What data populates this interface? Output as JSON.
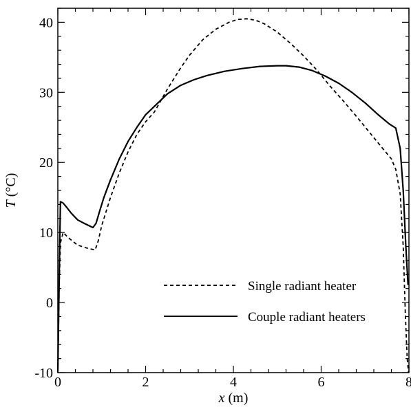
{
  "chart_data": {
    "type": "line",
    "xlabel": {
      "var": "x",
      "unit": " (m)"
    },
    "ylabel": {
      "var": "T",
      "unit": " (°C)"
    },
    "xlim": [
      0,
      8
    ],
    "ylim": [
      -10,
      42
    ],
    "xticks": [
      0,
      2,
      4,
      6,
      8
    ],
    "yticks": [
      -10,
      0,
      10,
      20,
      30,
      40
    ],
    "grid": false,
    "legend_position": "bottom-right",
    "series": [
      {
        "name": "Single radiant heater",
        "style": "dashed",
        "color": "#000000",
        "x": [
          0.0,
          0.03,
          0.06,
          0.12,
          0.25,
          0.45,
          0.65,
          0.85,
          0.92,
          1.0,
          1.2,
          1.4,
          1.6,
          1.8,
          2.0,
          2.2,
          2.5,
          2.8,
          3.0,
          3.3,
          3.6,
          3.9,
          4.1,
          4.3,
          4.5,
          4.7,
          5.0,
          5.3,
          5.6,
          5.9,
          6.2,
          6.5,
          6.8,
          7.1,
          7.4,
          7.6,
          7.7,
          7.8,
          7.87,
          7.92,
          7.96,
          7.99
        ],
        "y": [
          -10.0,
          2.0,
          8.5,
          10.0,
          9.2,
          8.2,
          7.8,
          7.5,
          8.8,
          11.0,
          15.0,
          18.5,
          21.5,
          24.0,
          25.8,
          27.2,
          30.5,
          33.5,
          35.3,
          37.5,
          39.0,
          40.0,
          40.4,
          40.5,
          40.3,
          39.8,
          38.6,
          37.0,
          35.2,
          33.2,
          30.9,
          28.8,
          26.6,
          24.3,
          22.0,
          20.5,
          19.0,
          15.5,
          8.0,
          -2.0,
          -8.0,
          -10.0
        ]
      },
      {
        "name": "Couple radiant heaters",
        "style": "solid",
        "color": "#000000",
        "x": [
          0.0,
          0.03,
          0.06,
          0.12,
          0.2,
          0.3,
          0.45,
          0.6,
          0.8,
          0.87,
          0.95,
          1.05,
          1.2,
          1.4,
          1.6,
          1.8,
          2.0,
          2.2,
          2.5,
          2.8,
          3.1,
          3.4,
          3.8,
          4.2,
          4.6,
          5.0,
          5.2,
          5.5,
          5.8,
          6.1,
          6.4,
          6.7,
          7.0,
          7.3,
          7.55,
          7.7,
          7.8,
          7.87,
          7.93,
          7.98
        ],
        "y": [
          -10.0,
          3.0,
          14.4,
          14.2,
          13.6,
          12.8,
          11.8,
          11.3,
          10.7,
          11.3,
          13.0,
          15.0,
          17.5,
          20.5,
          23.0,
          25.0,
          26.8,
          28.0,
          29.8,
          31.0,
          31.8,
          32.4,
          33.0,
          33.4,
          33.7,
          33.8,
          33.8,
          33.6,
          33.1,
          32.3,
          31.3,
          30.0,
          28.5,
          26.8,
          25.5,
          24.9,
          22.0,
          16.0,
          8.0,
          2.5
        ]
      }
    ]
  }
}
